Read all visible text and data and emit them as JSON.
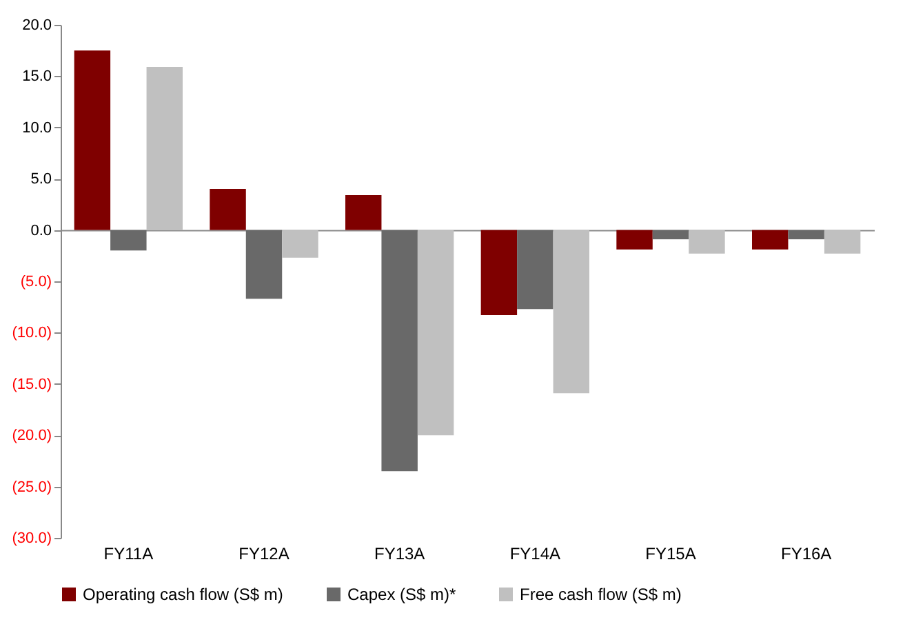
{
  "chart_data": {
    "type": "bar",
    "categories": [
      "FY11A",
      "FY12A",
      "FY13A",
      "FY14A",
      "FY15A",
      "FY16A"
    ],
    "series": [
      {
        "name": "Operating cash flow (S$ m)",
        "color": "#7f0000",
        "values": [
          17.5,
          4.0,
          3.4,
          -8.3,
          -1.9,
          -1.9
        ]
      },
      {
        "name": "Capex (S$ m)*",
        "color": "#696969",
        "values": [
          -2.0,
          -6.7,
          -23.5,
          -7.7,
          -0.9,
          -0.9
        ]
      },
      {
        "name": "Free cash flow (S$ m)",
        "color": "#c0c0c0",
        "values": [
          15.9,
          -2.7,
          -20.0,
          -15.9,
          -2.3,
          -2.3
        ]
      }
    ],
    "ylim": [
      -30,
      20
    ],
    "yticks": [
      {
        "value": 20,
        "label": "20.0"
      },
      {
        "value": 15,
        "label": "15.0"
      },
      {
        "value": 10,
        "label": "10.0"
      },
      {
        "value": 5,
        "label": "5.0"
      },
      {
        "value": 0,
        "label": "0.0"
      },
      {
        "value": -5,
        "label": "(5.0)"
      },
      {
        "value": -10,
        "label": "(10.0)"
      },
      {
        "value": -15,
        "label": "(15.0)"
      },
      {
        "value": -20,
        "label": "(20.0)"
      },
      {
        "value": -25,
        "label": "(25.0)"
      },
      {
        "value": -30,
        "label": "(30.0)"
      }
    ],
    "legend": "bottom"
  }
}
